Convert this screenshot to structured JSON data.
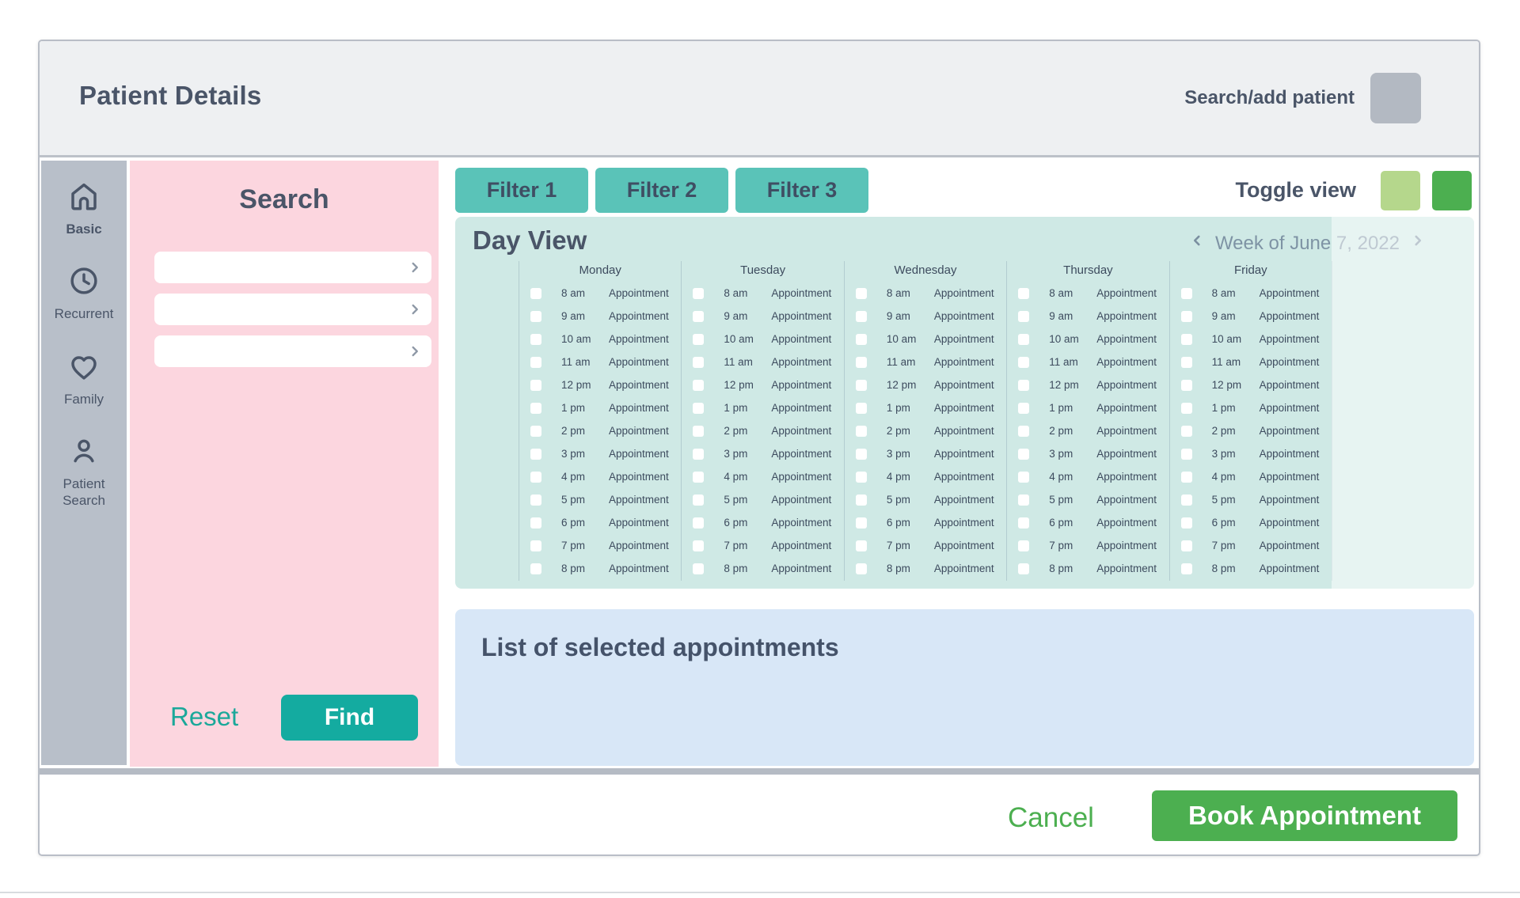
{
  "header": {
    "title": "Patient Details",
    "search_add_label": "Search/add patient"
  },
  "sidebar": {
    "items": [
      {
        "icon": "home-icon",
        "label": "Basic"
      },
      {
        "icon": "clock-icon",
        "label": "Recurrent"
      },
      {
        "icon": "heart-icon",
        "label": "Family"
      },
      {
        "icon": "person-icon",
        "label": "Patient Search"
      }
    ]
  },
  "search_panel": {
    "title": "Search",
    "fields": [
      {
        "value": "",
        "icon": "chevron-right-icon"
      },
      {
        "value": "",
        "icon": "chevron-right-icon"
      },
      {
        "value": "",
        "icon": "chevron-right-icon"
      }
    ],
    "reset_label": "Reset",
    "find_label": "Find"
  },
  "filters": [
    {
      "label": "Filter 1"
    },
    {
      "label": "Filter 2"
    },
    {
      "label": "Filter 3"
    }
  ],
  "toggle_view": {
    "label": "Toggle view",
    "options": [
      {
        "name": "light-green-view",
        "color": "#b5d78c"
      },
      {
        "name": "dark-green-view",
        "color": "#4caf50"
      }
    ]
  },
  "day_view": {
    "title": "Day View",
    "week_nav": {
      "prev_icon": "chevron-left-icon",
      "label": "Week of June 7, 2022",
      "next_icon": "chevron-right-icon"
    },
    "days": [
      "Monday",
      "Tuesday",
      "Wednesday",
      "Thursday",
      "Friday"
    ],
    "times": [
      "8 am",
      "9 am",
      "10 am",
      "11 am",
      "12 pm",
      "1 pm",
      "2 pm",
      "3 pm",
      "4 pm",
      "5 pm",
      "6 pm",
      "7 pm",
      "8 pm"
    ],
    "slot_label": "Appointment",
    "checkboxes_state": "unchecked"
  },
  "selected_list": {
    "title": "List of selected appointments"
  },
  "footer": {
    "cancel_label": "Cancel",
    "book_label": "Book Appointment"
  },
  "colors": {
    "header_bg": "#eef0f2",
    "sidebar_bg": "#b8bfc9",
    "pink_panel": "#fcd6df",
    "filter_teal": "#5ac3b8",
    "find_teal": "#14aba0",
    "day_view_bg": "#cfe9e5",
    "list_bg": "#d8e7f7",
    "green": "#4caf50",
    "light_green": "#b5d78c",
    "text_dark": "#4a5568",
    "week_text": "#7e93a4"
  }
}
